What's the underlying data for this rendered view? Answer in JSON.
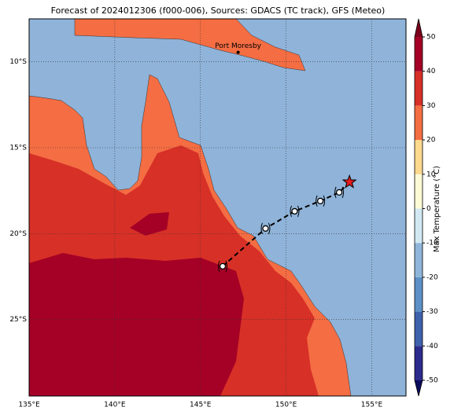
{
  "title": "Forecast of 2024012306 (f000-006), Sources: GDACS (TC track), GFS (Meteo)",
  "map": {
    "xlim": [
      135,
      157
    ],
    "ylim": [
      -29.45,
      -7.5
    ],
    "xticks": [
      {
        "value": 135,
        "label": "135°E"
      },
      {
        "value": 140,
        "label": "140°E"
      },
      {
        "value": 145,
        "label": "145°E"
      },
      {
        "value": 150,
        "label": "150°E"
      },
      {
        "value": 155,
        "label": "155°E"
      }
    ],
    "yticks": [
      {
        "value": -10,
        "label": "10°S"
      },
      {
        "value": -15,
        "label": "15°S"
      },
      {
        "value": -20,
        "label": "20°S"
      },
      {
        "value": -25,
        "label": "25°S"
      }
    ],
    "grid": true,
    "places": [
      {
        "name": "Port Moresby",
        "lon": 147.2,
        "lat": -9.45
      }
    ],
    "track": {
      "lon": [
        146.3,
        148.8,
        150.5,
        152.0,
        153.1,
        153.7
      ],
      "lat": [
        -21.9,
        -19.7,
        -18.7,
        -18.1,
        -17.6,
        -17.0
      ],
      "color": "#000000",
      "current_color": "#e31a1c"
    }
  },
  "colorbar": {
    "label": "Max Temperature (°C)",
    "ticks": [
      -50,
      -40,
      -30,
      -20,
      -10,
      0,
      10,
      20,
      30,
      40,
      50
    ],
    "colors": [
      "#2b2c8c",
      "#3f62ad",
      "#5d90c7",
      "#8fb6da",
      "#d2e9f3",
      "#fdfad6",
      "#fed98e",
      "#f46d43",
      "#d73027",
      "#a50026"
    ],
    "under_color": "#0b0b5e",
    "over_color": "#7a001c"
  }
}
